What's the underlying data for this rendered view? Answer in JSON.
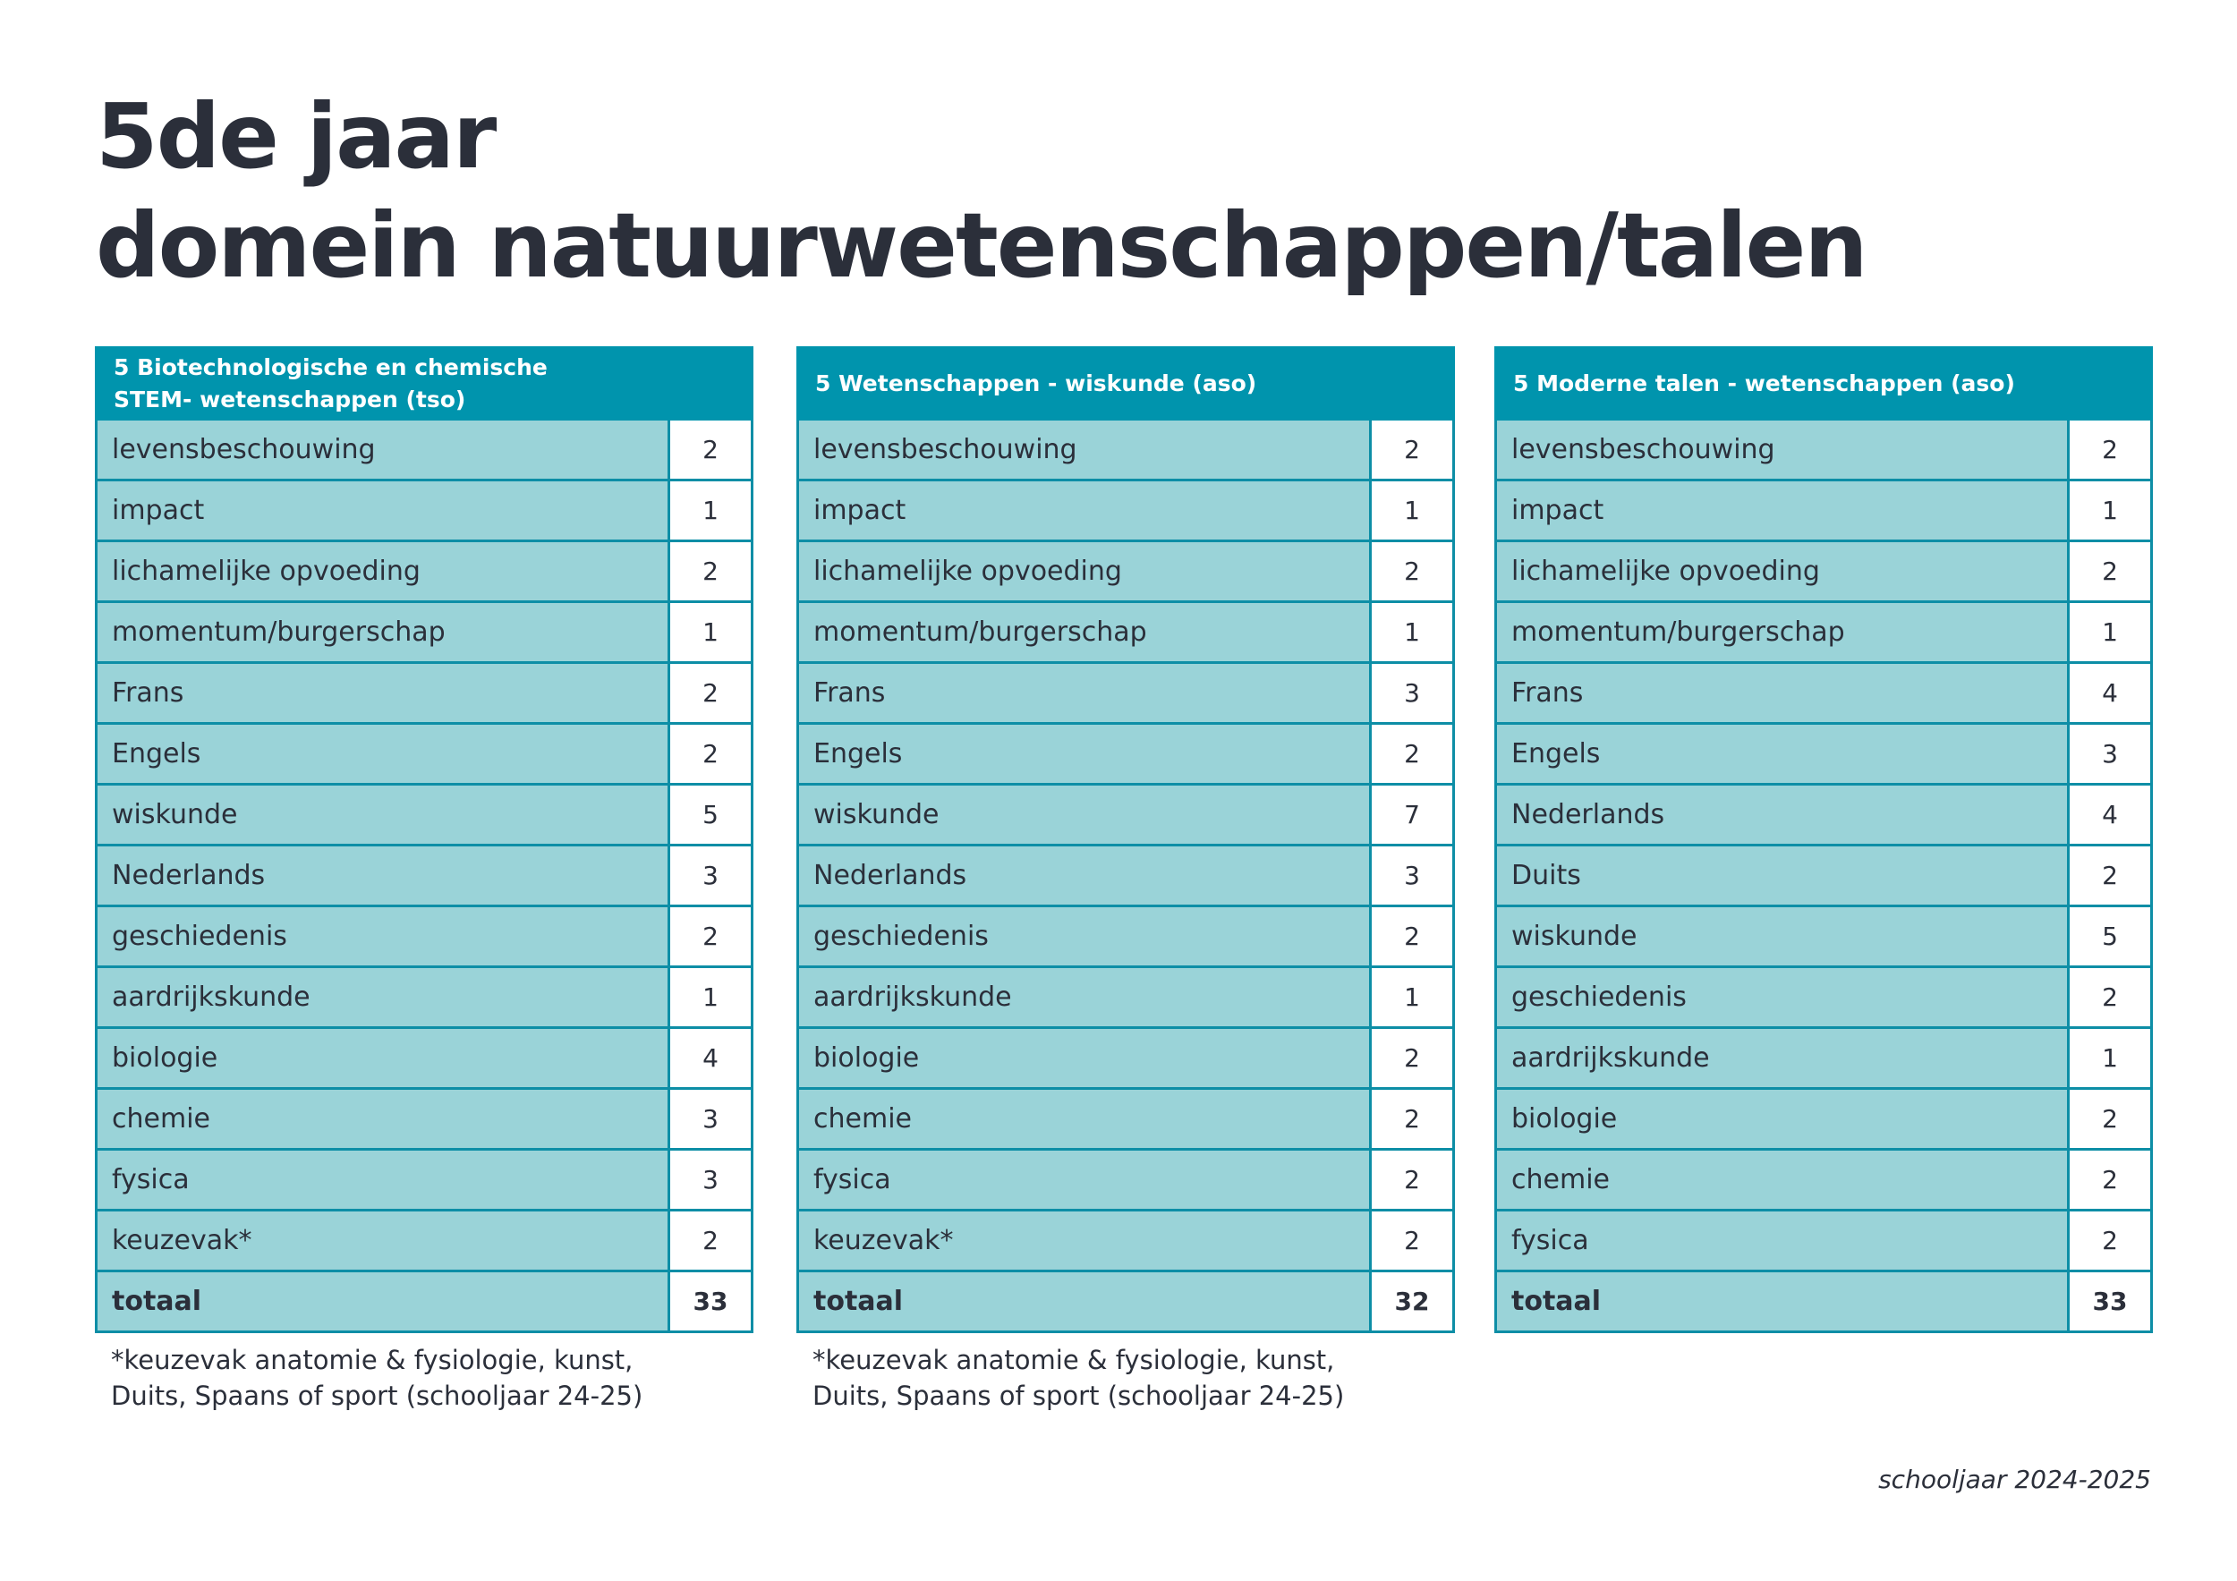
{
  "title": {
    "line1": "5de jaar",
    "line2": "domein natuurwetenschappen/talen"
  },
  "tables": [
    {
      "header_line1": "5 Biotechnologische en chemische",
      "header_line2": "STEM- wetenschappen (tso)",
      "rows": [
        {
          "subject": "levensbeschouwing",
          "hours": "2"
        },
        {
          "subject": "impact",
          "hours": "1"
        },
        {
          "subject": "lichamelijke opvoeding",
          "hours": "2"
        },
        {
          "subject": "momentum/burgerschap",
          "hours": "1"
        },
        {
          "subject": "Frans",
          "hours": "2"
        },
        {
          "subject": "Engels",
          "hours": "2"
        },
        {
          "subject": "wiskunde",
          "hours": "5"
        },
        {
          "subject": "Nederlands",
          "hours": "3"
        },
        {
          "subject": "geschiedenis",
          "hours": "2"
        },
        {
          "subject": "aardrijkskunde",
          "hours": "1"
        },
        {
          "subject": "biologie",
          "hours": "4"
        },
        {
          "subject": "chemie",
          "hours": "3"
        },
        {
          "subject": "fysica",
          "hours": "3"
        },
        {
          "subject": "keuzevak*",
          "hours": "2"
        }
      ],
      "total_label": "totaal",
      "total_value": "33",
      "footnote_line1": "*keuzevak anatomie & fysiologie, kunst,",
      "footnote_line2": "Duits, Spaans of sport (schooljaar 24-25)"
    },
    {
      "header_line1": "5 Wetenschappen - wiskunde (aso)",
      "header_line2": "",
      "rows": [
        {
          "subject": "levensbeschouwing",
          "hours": "2"
        },
        {
          "subject": "impact",
          "hours": "1"
        },
        {
          "subject": "lichamelijke opvoeding",
          "hours": "2"
        },
        {
          "subject": "momentum/burgerschap",
          "hours": "1"
        },
        {
          "subject": "Frans",
          "hours": "3"
        },
        {
          "subject": "Engels",
          "hours": "2"
        },
        {
          "subject": "wiskunde",
          "hours": "7"
        },
        {
          "subject": "Nederlands",
          "hours": "3"
        },
        {
          "subject": "geschiedenis",
          "hours": "2"
        },
        {
          "subject": "aardrijkskunde",
          "hours": "1"
        },
        {
          "subject": "biologie",
          "hours": "2"
        },
        {
          "subject": "chemie",
          "hours": "2"
        },
        {
          "subject": "fysica",
          "hours": "2"
        },
        {
          "subject": "keuzevak*",
          "hours": "2"
        }
      ],
      "total_label": "totaal",
      "total_value": "32",
      "footnote_line1": "*keuzevak anatomie & fysiologie, kunst,",
      "footnote_line2": "Duits, Spaans of sport (schooljaar 24-25)"
    },
    {
      "header_line1": "5 Moderne talen - wetenschappen (aso)",
      "header_line2": "",
      "rows": [
        {
          "subject": "levensbeschouwing",
          "hours": "2"
        },
        {
          "subject": "impact",
          "hours": "1"
        },
        {
          "subject": "lichamelijke opvoeding",
          "hours": "2"
        },
        {
          "subject": "momentum/burgerschap",
          "hours": "1"
        },
        {
          "subject": "Frans",
          "hours": "4"
        },
        {
          "subject": "Engels",
          "hours": "3"
        },
        {
          "subject": "Nederlands",
          "hours": "4"
        },
        {
          "subject": "Duits",
          "hours": "2"
        },
        {
          "subject": "wiskunde",
          "hours": "5"
        },
        {
          "subject": "geschiedenis",
          "hours": "2"
        },
        {
          "subject": "aardrijkskunde",
          "hours": "1"
        },
        {
          "subject": "biologie",
          "hours": "2"
        },
        {
          "subject": "chemie",
          "hours": "2"
        },
        {
          "subject": "fysica",
          "hours": "2"
        }
      ],
      "total_label": "totaal",
      "total_value": "33",
      "footnote_line1": "",
      "footnote_line2": ""
    }
  ],
  "school_year": "schooljaar 2024-2025"
}
